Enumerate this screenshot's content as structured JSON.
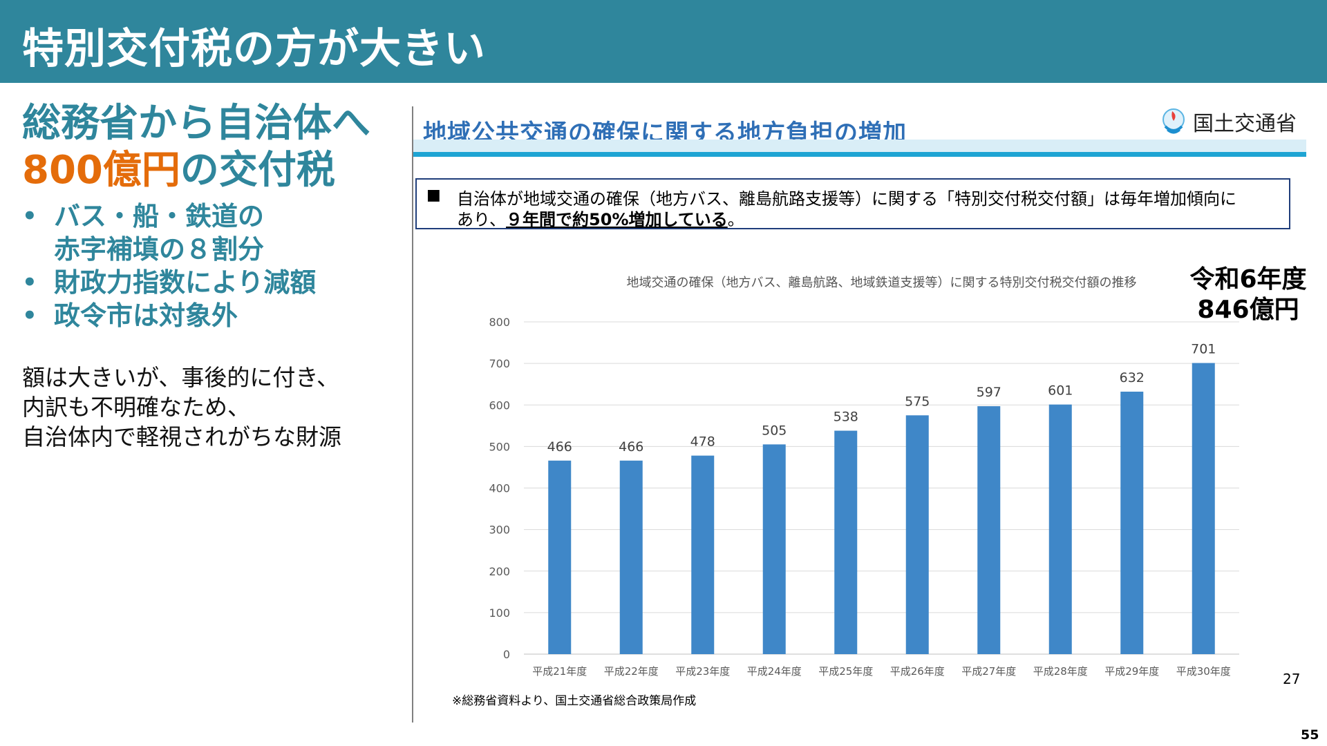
{
  "header": {
    "title": "特別交付税の方が大きい"
  },
  "left": {
    "lead_line1": "総務省から自治体へ",
    "lead_line2_accent": "800億円",
    "lead_line2_rest": "の交付税",
    "bullets": [
      [
        "バス・船・鉄道の",
        "赤字補填の８割分"
      ],
      [
        "財政力指数により減額"
      ],
      [
        "政令市は対象外"
      ]
    ],
    "description": [
      "額は大きいが、事後的に付き、",
      "内訳も不明確なため、",
      "自治体内で軽視されがちな財源"
    ]
  },
  "embedded_slide": {
    "title": "地域公共交通の確保に関する地方負担の増加",
    "logo_text": "国土交通省",
    "note": {
      "bullet": "■",
      "line1": "自治体が地域交通の確保（地方バス、離島航路支援等）に関する「特別交付税交付額」は毎年増加傾向に",
      "line2_prefix": "あり、",
      "line2_emphasis": "９年間で約50%増加している",
      "line2_suffix": "。"
    },
    "callout": [
      "令和6年度",
      "846億円"
    ],
    "inner_page_number": "27",
    "source": "※総務省資料より、国土交通省総合政策局作成"
  },
  "colors": {
    "header_bg": "#2f869c",
    "accent": "#e46c0a",
    "bar": "#3f87c8",
    "embed_title": "#2f6fb6"
  },
  "chart_data": {
    "type": "bar",
    "title": "地域交通の確保（地方バス、離島航路、地域鉄道支援等）に関する特別交付税交付額の推移",
    "categories": [
      "平成21年度",
      "平成22年度",
      "平成23年度",
      "平成24年度",
      "平成25年度",
      "平成26年度",
      "平成27年度",
      "平成28年度",
      "平成29年度",
      "平成30年度"
    ],
    "values": [
      466,
      466,
      478,
      505,
      538,
      575,
      597,
      601,
      632,
      701
    ],
    "yticks": [
      0,
      100,
      200,
      300,
      400,
      500,
      600,
      700,
      800
    ],
    "ylim": [
      0,
      800
    ],
    "grid": true,
    "data_labels": true
  },
  "slide_number": "55"
}
